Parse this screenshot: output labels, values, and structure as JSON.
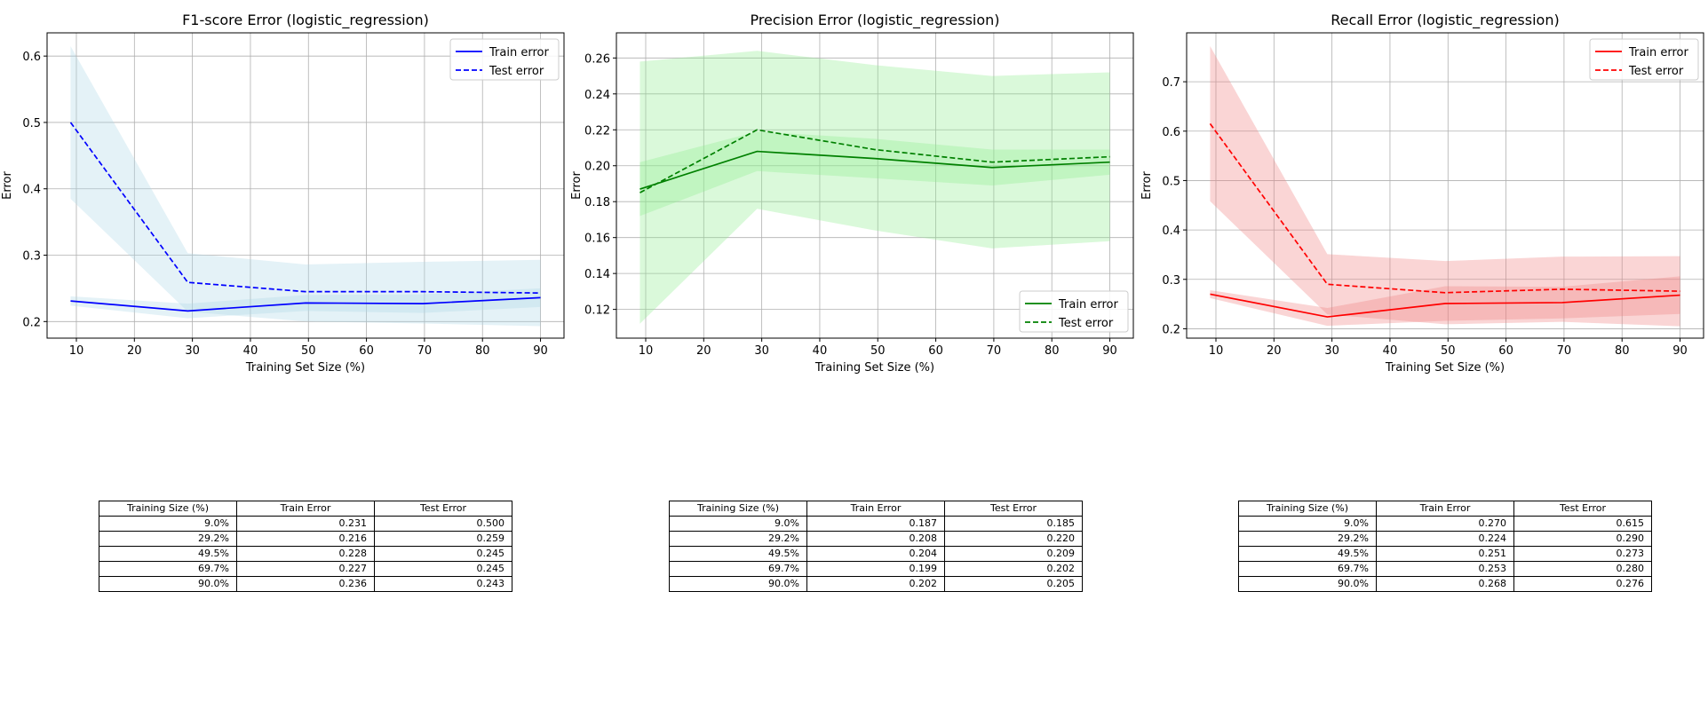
{
  "chart_data": [
    {
      "type": "line",
      "title": "F1-score Error (logistic_regression)",
      "xlabel": "Training Set Size (%)",
      "ylabel": "Error",
      "xlim": [
        4.95,
        94.05
      ],
      "ylim": [
        0.175,
        0.635
      ],
      "xticks": [
        10,
        20,
        30,
        40,
        50,
        60,
        70,
        80,
        90
      ],
      "yticks": [
        0.2,
        0.3,
        0.4,
        0.5,
        0.6
      ],
      "ytick_decimals": 1,
      "grid": true,
      "legend_position": "top-right",
      "color": "#0000ff",
      "band_color": "#add8e6",
      "x": [
        9.0,
        29.2,
        49.5,
        69.7,
        90.0
      ],
      "series": [
        {
          "name": "Train error",
          "style": "solid",
          "values": [
            0.231,
            0.216,
            0.228,
            0.227,
            0.236
          ],
          "band_low": [
            0.224,
            0.205,
            0.216,
            0.213,
            0.222
          ],
          "band_high": [
            0.238,
            0.227,
            0.24,
            0.241,
            0.25
          ]
        },
        {
          "name": "Test error",
          "style": "dashed",
          "values": [
            0.5,
            0.259,
            0.245,
            0.245,
            0.243
          ],
          "band_low": [
            0.385,
            0.215,
            0.2,
            0.197,
            0.193
          ],
          "band_high": [
            0.615,
            0.303,
            0.286,
            0.29,
            0.293
          ]
        }
      ],
      "table": {
        "headers": [
          "Training Size (%)",
          "Train Error",
          "Test Error"
        ],
        "rows": [
          [
            "9.0%",
            "0.231",
            "0.500"
          ],
          [
            "29.2%",
            "0.216",
            "0.259"
          ],
          [
            "49.5%",
            "0.228",
            "0.245"
          ],
          [
            "69.7%",
            "0.227",
            "0.245"
          ],
          [
            "90.0%",
            "0.236",
            "0.243"
          ]
        ]
      }
    },
    {
      "type": "line",
      "title": "Precision Error (logistic_regression)",
      "xlabel": "Training Set Size (%)",
      "ylabel": "Error",
      "xlim": [
        4.95,
        94.05
      ],
      "ylim": [
        0.104,
        0.274
      ],
      "xticks": [
        10,
        20,
        30,
        40,
        50,
        60,
        70,
        80,
        90
      ],
      "yticks": [
        0.12,
        0.14,
        0.16,
        0.18,
        0.2,
        0.22,
        0.24,
        0.26
      ],
      "ytick_decimals": 2,
      "grid": true,
      "legend_position": "bottom-right",
      "color": "#008000",
      "band_color": "#90ee90",
      "x": [
        9.0,
        29.2,
        49.5,
        69.7,
        90.0
      ],
      "series": [
        {
          "name": "Train error",
          "style": "solid",
          "values": [
            0.187,
            0.208,
            0.204,
            0.199,
            0.202
          ],
          "band_low": [
            0.172,
            0.197,
            0.193,
            0.189,
            0.195
          ],
          "band_high": [
            0.202,
            0.219,
            0.215,
            0.209,
            0.209
          ]
        },
        {
          "name": "Test error",
          "style": "dashed",
          "values": [
            0.185,
            0.22,
            0.209,
            0.202,
            0.205
          ],
          "band_low": [
            0.112,
            0.176,
            0.164,
            0.154,
            0.158
          ],
          "band_high": [
            0.258,
            0.264,
            0.256,
            0.25,
            0.252
          ]
        }
      ],
      "table": {
        "headers": [
          "Training Size (%)",
          "Train Error",
          "Test Error"
        ],
        "rows": [
          [
            "9.0%",
            "0.187",
            "0.185"
          ],
          [
            "29.2%",
            "0.208",
            "0.220"
          ],
          [
            "49.5%",
            "0.204",
            "0.209"
          ],
          [
            "69.7%",
            "0.199",
            "0.202"
          ],
          [
            "90.0%",
            "0.202",
            "0.205"
          ]
        ]
      }
    },
    {
      "type": "line",
      "title": "Recall Error (logistic_regression)",
      "xlabel": "Training Set Size (%)",
      "ylabel": "Error",
      "xlim": [
        4.95,
        94.05
      ],
      "ylim": [
        0.181,
        0.799
      ],
      "xticks": [
        10,
        20,
        30,
        40,
        50,
        60,
        70,
        80,
        90
      ],
      "yticks": [
        0.2,
        0.3,
        0.4,
        0.5,
        0.6,
        0.7
      ],
      "ytick_decimals": 1,
      "grid": true,
      "legend_position": "top-right",
      "color": "#ff0000",
      "band_color": "#f08080",
      "x": [
        9.0,
        29.2,
        49.5,
        69.7,
        90.0
      ],
      "series": [
        {
          "name": "Train error",
          "style": "solid",
          "values": [
            0.27,
            0.224,
            0.251,
            0.253,
            0.268
          ],
          "band_low": [
            0.262,
            0.206,
            0.216,
            0.221,
            0.23
          ],
          "band_high": [
            0.278,
            0.242,
            0.286,
            0.285,
            0.306
          ]
        },
        {
          "name": "Test error",
          "style": "dashed",
          "values": [
            0.615,
            0.29,
            0.273,
            0.28,
            0.276
          ],
          "band_low": [
            0.458,
            0.229,
            0.209,
            0.214,
            0.205
          ],
          "band_high": [
            0.772,
            0.351,
            0.337,
            0.346,
            0.347
          ]
        }
      ],
      "table": {
        "headers": [
          "Training Size (%)",
          "Train Error",
          "Test Error"
        ],
        "rows": [
          [
            "9.0%",
            "0.270",
            "0.615"
          ],
          [
            "29.2%",
            "0.224",
            "0.290"
          ],
          [
            "49.5%",
            "0.251",
            "0.273"
          ],
          [
            "69.7%",
            "0.253",
            "0.280"
          ],
          [
            "90.0%",
            "0.268",
            "0.276"
          ]
        ]
      }
    }
  ]
}
